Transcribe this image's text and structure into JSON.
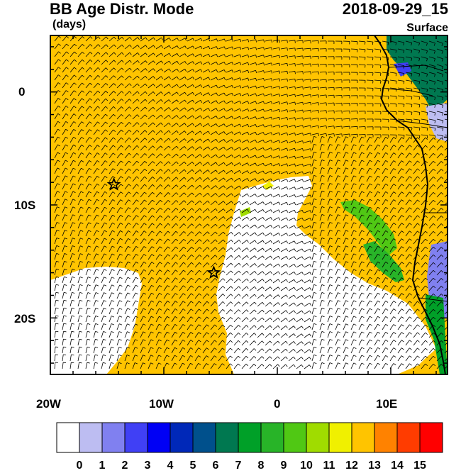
{
  "header": {
    "title": "BB Age Distr. Mode",
    "datetime": "2018-09-29_15",
    "units": "(days)",
    "level": "Surface"
  },
  "axes": {
    "x_ticks": [
      "20W",
      "10W",
      "0",
      "10E"
    ],
    "y_ticks": [
      "0",
      "10S",
      "20S"
    ]
  },
  "colorbar": {
    "labels": [
      "0",
      "1",
      "2",
      "3",
      "4",
      "5",
      "6",
      "7",
      "8",
      "9",
      "10",
      "11",
      "12",
      "13",
      "14",
      "15"
    ],
    "colors": [
      "#ffffff",
      "#bdbdf2",
      "#8080f0",
      "#4040f5",
      "#0000f5",
      "#0028b8",
      "#00508c",
      "#007850",
      "#00a028",
      "#28b428",
      "#50c814",
      "#a0dc00",
      "#f0f000",
      "#ffc400",
      "#ff8200",
      "#ff3c00",
      "#ff0000"
    ]
  },
  "map": {
    "lon_range": [
      -20,
      15
    ],
    "lat_range": [
      -25,
      5
    ],
    "markers": [
      {
        "name": "star-marker",
        "lon": -14.4,
        "lat": -8.2
      },
      {
        "name": "star-marker",
        "lon": -5.6,
        "lat": -16.0
      }
    ]
  }
}
